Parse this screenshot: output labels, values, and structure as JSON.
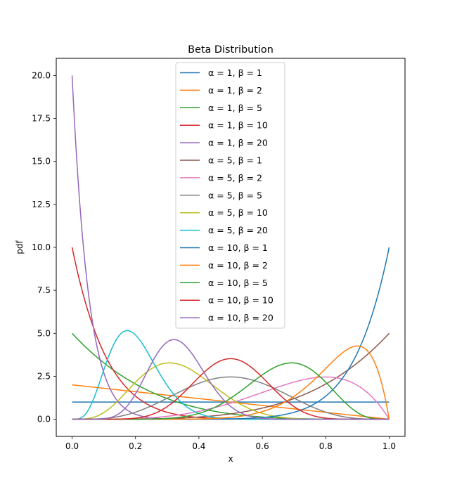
{
  "chart_data": {
    "type": "line",
    "title": "Beta Distribution",
    "xlabel": "x",
    "ylabel": "pdf",
    "xlim": [
      -0.05,
      1.05
    ],
    "ylim": [
      -1.0,
      21.0
    ],
    "x_ticks": [
      0.0,
      0.2,
      0.4,
      0.6,
      0.8,
      1.0
    ],
    "x_tick_labels": [
      "0.0",
      "0.2",
      "0.4",
      "0.6",
      "0.8",
      "1.0"
    ],
    "y_ticks": [
      0.0,
      2.5,
      5.0,
      7.5,
      10.0,
      12.5,
      15.0,
      17.5,
      20.0
    ],
    "y_tick_labels": [
      "0.0",
      "2.5",
      "5.0",
      "7.5",
      "10.0",
      "12.5",
      "15.0",
      "17.5",
      "20.0"
    ],
    "grid": false,
    "legend_position": "top-center",
    "series": [
      {
        "alpha_label": "α = 1,",
        "beta_label": "β = 1",
        "alpha": 1,
        "beta": 1,
        "color": "#1f77b4"
      },
      {
        "alpha_label": "α = 1,",
        "beta_label": "β = 2",
        "alpha": 1,
        "beta": 2,
        "color": "#ff7f0e"
      },
      {
        "alpha_label": "α = 1,",
        "beta_label": "β = 5",
        "alpha": 1,
        "beta": 5,
        "color": "#2ca02c"
      },
      {
        "alpha_label": "α = 1,",
        "beta_label": "β = 10",
        "alpha": 1,
        "beta": 10,
        "color": "#d62728"
      },
      {
        "alpha_label": "α = 1,",
        "beta_label": "β = 20",
        "alpha": 1,
        "beta": 20,
        "color": "#9467bd"
      },
      {
        "alpha_label": "α = 5,",
        "beta_label": "β = 1",
        "alpha": 5,
        "beta": 1,
        "color": "#8c564b"
      },
      {
        "alpha_label": "α = 5,",
        "beta_label": "β = 2",
        "alpha": 5,
        "beta": 2,
        "color": "#e377c2"
      },
      {
        "alpha_label": "α = 5,",
        "beta_label": "β = 5",
        "alpha": 5,
        "beta": 5,
        "color": "#7f7f7f"
      },
      {
        "alpha_label": "α = 5,",
        "beta_label": "β = 10",
        "alpha": 5,
        "beta": 10,
        "color": "#bcbd22"
      },
      {
        "alpha_label": "α = 5,",
        "beta_label": "β = 20",
        "alpha": 5,
        "beta": 20,
        "color": "#17becf"
      },
      {
        "alpha_label": "α = 10,",
        "beta_label": "β = 1",
        "alpha": 10,
        "beta": 1,
        "color": "#1f77b4"
      },
      {
        "alpha_label": "α = 10,",
        "beta_label": "β = 2",
        "alpha": 10,
        "beta": 2,
        "color": "#ff7f0e"
      },
      {
        "alpha_label": "α = 10,",
        "beta_label": "β = 5",
        "alpha": 10,
        "beta": 5,
        "color": "#2ca02c"
      },
      {
        "alpha_label": "α = 10,",
        "beta_label": "β = 10",
        "alpha": 10,
        "beta": 10,
        "color": "#d62728"
      },
      {
        "alpha_label": "α = 10,",
        "beta_label": "β = 20",
        "alpha": 10,
        "beta": 20,
        "color": "#9467bd"
      }
    ]
  }
}
